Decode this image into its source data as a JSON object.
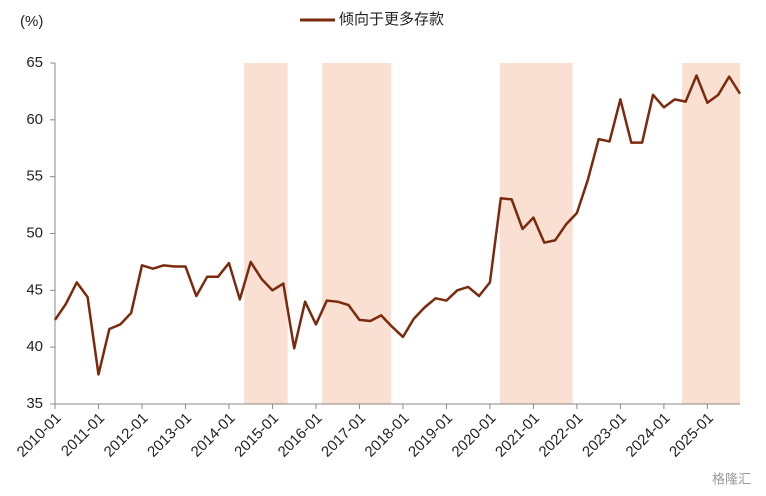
{
  "chart_data": {
    "type": "line",
    "y_label": "(%)",
    "series": [
      {
        "name": "倾向于更多存款",
        "color": "#7b2a0e",
        "x": [
          2010,
          2010.25,
          2010.5,
          2010.75,
          2011,
          2011.25,
          2011.5,
          2011.75,
          2012,
          2012.25,
          2012.5,
          2012.75,
          2013,
          2013.25,
          2013.5,
          2013.75,
          2014,
          2014.25,
          2014.5,
          2014.75,
          2015,
          2015.25,
          2015.5,
          2015.75,
          2016,
          2016.25,
          2016.5,
          2016.75,
          2017,
          2017.25,
          2017.5,
          2017.75,
          2018,
          2018.25,
          2018.5,
          2018.75,
          2019,
          2019.25,
          2019.5,
          2019.75,
          2020,
          2020.25,
          2020.5,
          2020.75,
          2021,
          2021.25,
          2021.5,
          2021.75,
          2022,
          2022.25,
          2022.5,
          2022.75,
          2023,
          2023.25,
          2023.5,
          2023.75,
          2024,
          2024.25,
          2024.5,
          2024.75,
          2025,
          2025.25,
          2025.5,
          2025.75
        ],
        "values": [
          42.4,
          43.8,
          45.7,
          44.4,
          37.6,
          41.6,
          42.0,
          43.0,
          47.2,
          46.9,
          47.2,
          47.1,
          47.1,
          44.5,
          46.2,
          46.2,
          47.4,
          44.2,
          47.5,
          46.0,
          45.0,
          45.6,
          39.9,
          44.0,
          42.0,
          44.1,
          44.0,
          43.7,
          42.4,
          42.3,
          42.8,
          41.8,
          40.9,
          42.5,
          43.5,
          44.3,
          44.1,
          45.0,
          45.3,
          44.5,
          45.7,
          53.1,
          53.0,
          50.4,
          51.4,
          49.2,
          49.4,
          50.8,
          51.8,
          54.7,
          58.3,
          58.1,
          61.8,
          58.0,
          58.0,
          62.2,
          61.1,
          61.8,
          61.6,
          63.9,
          61.5,
          62.2,
          63.8,
          62.3
        ]
      }
    ],
    "shaded_ranges": [
      [
        2014.35,
        2015.35
      ],
      [
        2016.14,
        2017.73
      ],
      [
        2020.23,
        2021.9
      ],
      [
        2024.42,
        2025.75
      ]
    ],
    "shade_color": "#f9e0d2",
    "xlim": [
      2010,
      2025.75
    ],
    "xticks": [
      {
        "value": 2010,
        "label": "2010-01"
      },
      {
        "value": 2011,
        "label": "2011-01"
      },
      {
        "value": 2012,
        "label": "2012-01"
      },
      {
        "value": 2013,
        "label": "2013-01"
      },
      {
        "value": 2014,
        "label": "2014-01"
      },
      {
        "value": 2015,
        "label": "2015-01"
      },
      {
        "value": 2016,
        "label": "2016-01"
      },
      {
        "value": 2017,
        "label": "2017-01"
      },
      {
        "value": 2018,
        "label": "2018-01"
      },
      {
        "value": 2019,
        "label": "2019-01"
      },
      {
        "value": 2020,
        "label": "2020-01"
      },
      {
        "value": 2021,
        "label": "2021-01"
      },
      {
        "value": 2022,
        "label": "2022-01"
      },
      {
        "value": 2023,
        "label": "2023-01"
      },
      {
        "value": 2024,
        "label": "2024-01"
      },
      {
        "value": 2025,
        "label": "2025-01"
      }
    ],
    "ylim": [
      35,
      65
    ],
    "yticks": [
      35,
      40,
      45,
      50,
      55,
      60,
      65
    ],
    "grid": false
  },
  "watermark": "格隆汇"
}
